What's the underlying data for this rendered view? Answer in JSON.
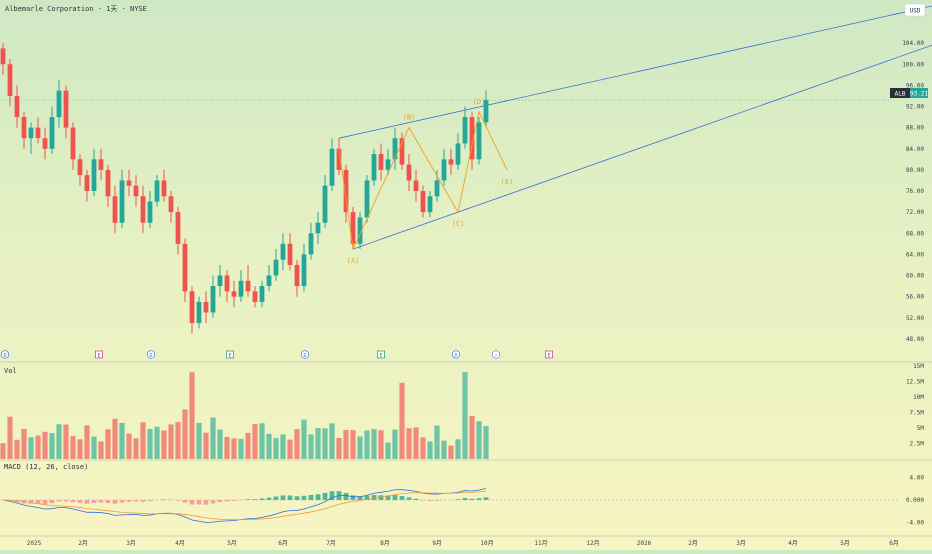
{
  "header": {
    "symbol_line": "Albemarle Corporation · 1天 · NYSE",
    "currency": "USD"
  },
  "price_badge": {
    "ticker": "ALB",
    "value": "93.21",
    "price": 93.21
  },
  "colors": {
    "up": "#26a69a",
    "down": "#ef5350",
    "trendline": "#3a6fd8",
    "wave": "#f0a020",
    "macd": "#2f6fe0",
    "signal": "#f39c34",
    "badge": "#26a69a"
  },
  "chart_data": {
    "type": "candlestick",
    "price_axis": {
      "range": [
        44,
        108
      ],
      "ticks": [
        "48.00",
        "52.00",
        "56.00",
        "60.00",
        "64.00",
        "68.00",
        "72.00",
        "76.00",
        "80.00",
        "84.00",
        "88.00",
        "92.00",
        "96.00",
        "100.00",
        "104.00"
      ]
    },
    "time_axis": {
      "labels": [
        "2025",
        "2月",
        "3月",
        "4月",
        "5月",
        "6月",
        "7月",
        "8月",
        "9月",
        "10月",
        "11月",
        "12月",
        "2026",
        "2月",
        "3月",
        "4月",
        "5月",
        "6月"
      ]
    },
    "candles": [
      [
        103,
        104,
        98,
        100
      ],
      [
        100,
        101,
        92,
        94
      ],
      [
        94,
        96,
        88,
        90
      ],
      [
        90,
        91,
        84,
        86
      ],
      [
        86,
        89,
        83,
        88
      ],
      [
        88,
        90,
        85,
        86
      ],
      [
        86,
        88,
        82,
        84
      ],
      [
        84,
        92,
        83,
        90
      ],
      [
        90,
        97,
        88,
        95
      ],
      [
        95,
        96,
        86,
        88
      ],
      [
        88,
        89,
        80,
        82
      ],
      [
        82,
        83,
        77,
        79
      ],
      [
        79,
        80,
        74,
        76
      ],
      [
        76,
        84,
        75,
        82
      ],
      [
        82,
        84,
        78,
        80
      ],
      [
        80,
        81,
        73,
        75
      ],
      [
        75,
        77,
        68,
        70
      ],
      [
        70,
        80,
        69,
        78
      ],
      [
        78,
        80,
        75,
        77
      ],
      [
        77,
        79,
        73,
        75
      ],
      [
        75,
        77,
        68,
        70
      ],
      [
        70,
        76,
        69,
        74
      ],
      [
        74,
        79,
        73,
        78
      ],
      [
        78,
        80,
        74,
        75
      ],
      [
        75,
        76,
        70,
        72
      ],
      [
        72,
        73,
        64,
        66
      ],
      [
        66,
        67,
        55,
        57
      ],
      [
        57,
        58,
        49,
        51
      ],
      [
        51,
        56,
        50,
        55
      ],
      [
        55,
        57,
        51,
        53
      ],
      [
        53,
        60,
        52,
        58
      ],
      [
        58,
        62,
        56,
        60
      ],
      [
        60,
        61,
        55,
        57
      ],
      [
        57,
        59,
        54,
        56
      ],
      [
        56,
        61,
        55,
        59
      ],
      [
        59,
        62,
        56,
        57
      ],
      [
        57,
        58,
        54,
        55
      ],
      [
        55,
        59,
        54,
        58
      ],
      [
        58,
        62,
        57,
        60
      ],
      [
        60,
        65,
        59,
        63
      ],
      [
        63,
        68,
        61,
        66
      ],
      [
        66,
        68,
        61,
        62
      ],
      [
        62,
        63,
        56,
        58
      ],
      [
        58,
        66,
        57,
        64
      ],
      [
        64,
        70,
        63,
        68
      ],
      [
        68,
        72,
        66,
        70
      ],
      [
        70,
        79,
        69,
        77
      ],
      [
        77,
        86,
        76,
        84
      ],
      [
        84,
        86,
        79,
        80
      ],
      [
        80,
        81,
        70,
        72
      ],
      [
        72,
        73,
        65,
        66
      ],
      [
        66,
        72,
        65,
        71
      ],
      [
        71,
        79,
        70,
        78
      ],
      [
        78,
        84,
        77,
        83
      ],
      [
        83,
        85,
        78,
        80
      ],
      [
        80,
        84,
        79,
        82
      ],
      [
        82,
        88,
        80,
        86
      ],
      [
        86,
        87,
        80,
        81
      ],
      [
        81,
        83,
        76,
        78
      ],
      [
        78,
        80,
        74,
        76
      ],
      [
        76,
        77,
        71,
        72
      ],
      [
        72,
        76,
        71,
        75
      ],
      [
        75,
        80,
        74,
        78
      ],
      [
        78,
        84,
        77,
        82
      ],
      [
        82,
        84,
        79,
        81
      ],
      [
        81,
        87,
        80,
        85
      ],
      [
        85,
        92,
        84,
        90
      ],
      [
        90,
        91,
        80,
        82
      ],
      [
        82,
        90,
        81,
        89
      ],
      [
        89,
        95,
        88,
        93.21
      ]
    ],
    "volume": {
      "ticks": [
        "2.5M",
        "5M",
        "7.5M",
        "10M",
        "12.5M",
        "15M"
      ],
      "range": [
        0,
        15
      ]
    },
    "macd": {
      "label": "MACD (12, 26, close)",
      "ticks": [
        "4.00",
        "0.000",
        "-4.00"
      ],
      "range": [
        -6,
        6
      ]
    },
    "wave_labels": [
      "(A)",
      "(B)",
      "(C)",
      "(D)",
      "(E)"
    ],
    "event_markers": [
      "D",
      "E",
      "D",
      "E",
      "D",
      "E",
      "D",
      "⚡",
      "E"
    ],
    "volume_label": "Vol"
  }
}
